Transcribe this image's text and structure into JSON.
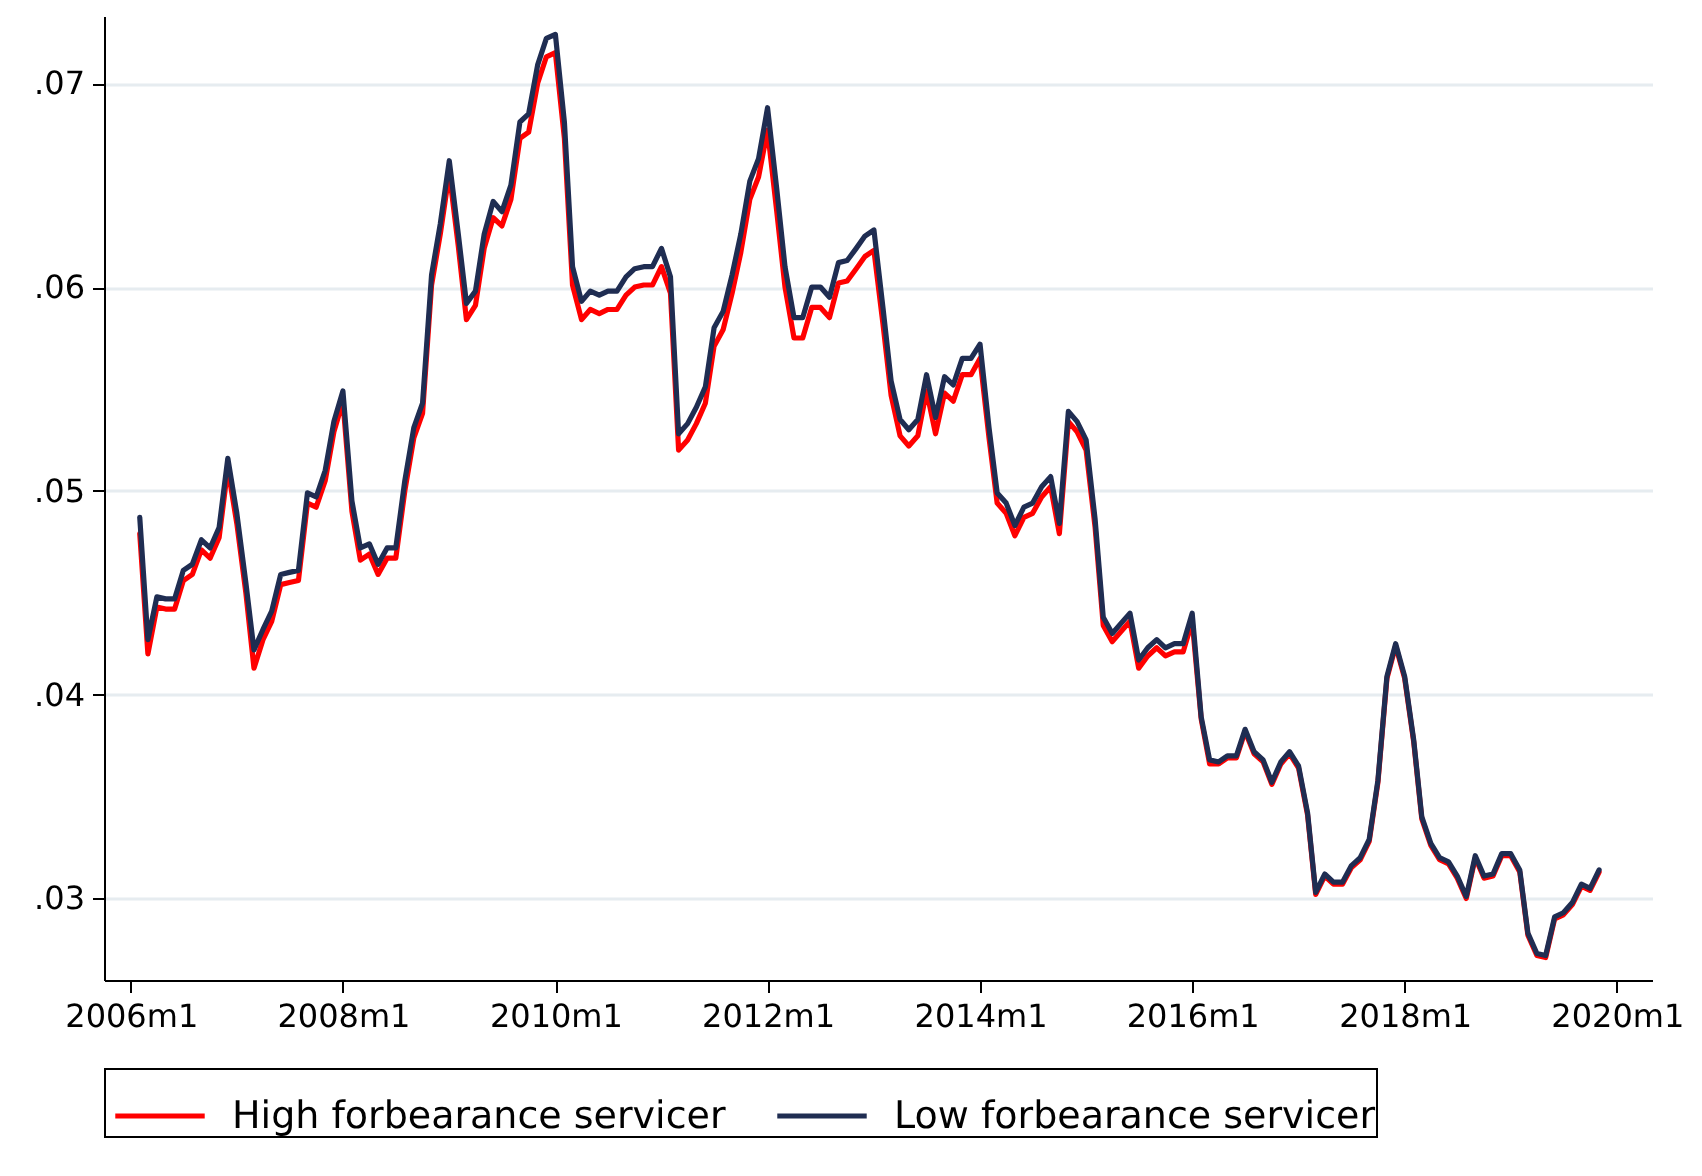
{
  "chart_data": {
    "type": "line",
    "x": [
      "2006-02",
      "2006-03",
      "2006-04",
      "2006-05",
      "2006-06",
      "2006-07",
      "2006-08",
      "2006-09",
      "2006-10",
      "2006-11",
      "2006-12",
      "2007-01",
      "2007-02",
      "2007-03",
      "2007-04",
      "2007-05",
      "2007-06",
      "2007-07",
      "2007-08",
      "2007-09",
      "2007-10",
      "2007-11",
      "2007-12",
      "2008-01",
      "2008-02",
      "2008-03",
      "2008-04",
      "2008-05",
      "2008-06",
      "2008-07",
      "2008-08",
      "2008-09",
      "2008-10",
      "2008-11",
      "2008-12",
      "2009-01",
      "2009-02",
      "2009-03",
      "2009-04",
      "2009-05",
      "2009-06",
      "2009-07",
      "2009-08",
      "2009-09",
      "2009-10",
      "2009-11",
      "2009-12",
      "2010-01",
      "2010-02",
      "2010-03",
      "2010-04",
      "2010-05",
      "2010-06",
      "2010-07",
      "2010-08",
      "2010-09",
      "2010-10",
      "2010-11",
      "2010-12",
      "2011-01",
      "2011-02",
      "2011-03",
      "2011-04",
      "2011-05",
      "2011-06",
      "2011-07",
      "2011-08",
      "2011-09",
      "2011-10",
      "2011-11",
      "2011-12",
      "2012-01",
      "2012-02",
      "2012-03",
      "2012-04",
      "2012-05",
      "2012-06",
      "2012-07",
      "2012-08",
      "2012-09",
      "2012-10",
      "2012-11",
      "2012-12",
      "2013-01",
      "2013-02",
      "2013-03",
      "2013-04",
      "2013-05",
      "2013-06",
      "2013-07",
      "2013-08",
      "2013-09",
      "2013-10",
      "2013-11",
      "2013-12",
      "2014-01",
      "2014-02",
      "2014-03",
      "2014-04",
      "2014-05",
      "2014-06",
      "2014-07",
      "2014-08",
      "2014-09",
      "2014-10",
      "2014-11",
      "2014-12",
      "2015-01",
      "2015-02",
      "2015-03",
      "2015-04",
      "2015-05",
      "2015-06",
      "2015-07",
      "2015-08",
      "2015-09",
      "2015-10",
      "2015-11",
      "2015-12",
      "2016-01",
      "2016-02",
      "2016-03",
      "2016-04",
      "2016-05",
      "2016-06",
      "2016-07",
      "2016-08",
      "2016-09",
      "2016-10",
      "2016-11",
      "2016-12",
      "2017-01",
      "2017-02",
      "2017-03",
      "2017-04",
      "2017-05",
      "2017-06",
      "2017-07",
      "2017-08",
      "2017-09",
      "2017-10",
      "2017-11",
      "2017-12",
      "2018-01",
      "2018-02",
      "2018-03",
      "2018-04",
      "2018-05",
      "2018-06",
      "2018-07",
      "2018-08",
      "2018-09",
      "2018-10",
      "2018-11",
      "2018-12",
      "2019-01",
      "2019-02",
      "2019-03",
      "2019-04",
      "2019-05",
      "2019-06",
      "2019-07",
      "2019-08",
      "2019-09",
      "2019-10",
      "2019-11"
    ],
    "series": [
      {
        "name": "High forbearance servicer",
        "color": "#ff0000",
        "values": [
          0.0479,
          0.042,
          0.0443,
          0.0442,
          0.0442,
          0.0456,
          0.0459,
          0.0471,
          0.0467,
          0.0477,
          0.0511,
          0.0484,
          0.045,
          0.0413,
          0.0427,
          0.0436,
          0.0454,
          0.0455,
          0.0456,
          0.0494,
          0.0492,
          0.0505,
          0.0529,
          0.0544,
          0.049,
          0.0466,
          0.0469,
          0.0459,
          0.0467,
          0.0467,
          0.05,
          0.0526,
          0.0538,
          0.0601,
          0.0626,
          0.0656,
          0.062,
          0.0584,
          0.0591,
          0.0619,
          0.0634,
          0.063,
          0.0643,
          0.0673,
          0.0676,
          0.07,
          0.0713,
          0.0715,
          0.0673,
          0.0601,
          0.0584,
          0.0589,
          0.0587,
          0.0589,
          0.0589,
          0.0596,
          0.06,
          0.0601,
          0.0601,
          0.061,
          0.0597,
          0.052,
          0.0525,
          0.0533,
          0.0543,
          0.0571,
          0.0579,
          0.0597,
          0.0617,
          0.0643,
          0.0654,
          0.0677,
          0.0638,
          0.06,
          0.0575,
          0.0575,
          0.059,
          0.059,
          0.0585,
          0.0602,
          0.0603,
          0.0609,
          0.0615,
          0.0618,
          0.0582,
          0.0547,
          0.0527,
          0.0522,
          0.0527,
          0.0549,
          0.0528,
          0.0548,
          0.0544,
          0.0557,
          0.0557,
          0.0565,
          0.0526,
          0.0494,
          0.0489,
          0.0478,
          0.0487,
          0.0489,
          0.0497,
          0.0502,
          0.0479,
          0.0534,
          0.0529,
          0.052,
          0.0482,
          0.0434,
          0.0426,
          0.0431,
          0.0436,
          0.0413,
          0.0419,
          0.0423,
          0.0419,
          0.0421,
          0.0421,
          0.0436,
          0.0388,
          0.0366,
          0.0366,
          0.0369,
          0.0369,
          0.0382,
          0.0371,
          0.0367,
          0.0356,
          0.0366,
          0.0371,
          0.0364,
          0.0341,
          0.0302,
          0.0311,
          0.0307,
          0.0307,
          0.0315,
          0.0319,
          0.0328,
          0.0357,
          0.0408,
          0.0424,
          0.0408,
          0.0377,
          0.0339,
          0.0326,
          0.0319,
          0.0317,
          0.031,
          0.03,
          0.032,
          0.031,
          0.0311,
          0.0321,
          0.0321,
          0.0313,
          0.0282,
          0.0272,
          0.0271,
          0.029,
          0.0292,
          0.0297,
          0.0306,
          0.0304,
          0.0313
        ]
      },
      {
        "name": "Low forbearance servicer",
        "color": "#1f2d52",
        "values": [
          0.0487,
          0.0427,
          0.0448,
          0.0447,
          0.0447,
          0.0461,
          0.0464,
          0.0476,
          0.0472,
          0.0482,
          0.0516,
          0.0489,
          0.0455,
          0.0422,
          0.0432,
          0.0441,
          0.0459,
          0.046,
          0.0461,
          0.0499,
          0.0497,
          0.051,
          0.0534,
          0.0549,
          0.0495,
          0.0472,
          0.0474,
          0.0464,
          0.0472,
          0.0472,
          0.0505,
          0.0531,
          0.0543,
          0.0606,
          0.0631,
          0.0662,
          0.0626,
          0.0592,
          0.0598,
          0.0626,
          0.0642,
          0.0637,
          0.065,
          0.0681,
          0.0685,
          0.0709,
          0.0722,
          0.0724,
          0.0681,
          0.061,
          0.0593,
          0.0598,
          0.0596,
          0.0598,
          0.0598,
          0.0605,
          0.0609,
          0.061,
          0.061,
          0.0619,
          0.0605,
          0.0528,
          0.0533,
          0.0541,
          0.0551,
          0.058,
          0.0588,
          0.0606,
          0.0626,
          0.0652,
          0.0663,
          0.0688,
          0.0649,
          0.061,
          0.0585,
          0.0585,
          0.06,
          0.06,
          0.0595,
          0.0612,
          0.0613,
          0.0619,
          0.0625,
          0.0628,
          0.059,
          0.0554,
          0.0535,
          0.053,
          0.0535,
          0.0557,
          0.0536,
          0.0556,
          0.0552,
          0.0565,
          0.0565,
          0.0572,
          0.0531,
          0.0499,
          0.0494,
          0.0483,
          0.0492,
          0.0494,
          0.0502,
          0.0507,
          0.0484,
          0.0539,
          0.0534,
          0.0525,
          0.0486,
          0.0438,
          0.043,
          0.0435,
          0.044,
          0.0417,
          0.0423,
          0.0427,
          0.0423,
          0.0425,
          0.0425,
          0.044,
          0.0389,
          0.0368,
          0.0367,
          0.037,
          0.037,
          0.0383,
          0.0372,
          0.0368,
          0.0357,
          0.0367,
          0.0372,
          0.0365,
          0.0342,
          0.0303,
          0.0312,
          0.0308,
          0.0308,
          0.0316,
          0.032,
          0.0329,
          0.0358,
          0.0409,
          0.0425,
          0.0409,
          0.0378,
          0.034,
          0.0327,
          0.032,
          0.0318,
          0.0311,
          0.0301,
          0.0321,
          0.0311,
          0.0312,
          0.0322,
          0.0322,
          0.0314,
          0.0283,
          0.0273,
          0.0272,
          0.0291,
          0.0293,
          0.0298,
          0.0307,
          0.0305,
          0.0314
        ]
      }
    ],
    "xlim": [
      "2005-10",
      "2020-05"
    ],
    "xticks": [
      {
        "value": "2006-01",
        "label": "2006m1"
      },
      {
        "value": "2008-01",
        "label": "2008m1"
      },
      {
        "value": "2010-01",
        "label": "2010m1"
      },
      {
        "value": "2012-01",
        "label": "2012m1"
      },
      {
        "value": "2014-01",
        "label": "2014m1"
      },
      {
        "value": "2016-01",
        "label": "2016m1"
      },
      {
        "value": "2018-01",
        "label": "2018m1"
      },
      {
        "value": "2020-01",
        "label": "2020m1"
      }
    ],
    "ylim": [
      0.026,
      0.0733
    ],
    "yticks": [
      {
        "value": 0.03,
        "label": ".03"
      },
      {
        "value": 0.04,
        "label": ".04"
      },
      {
        "value": 0.05,
        "label": ".05"
      },
      {
        "value": 0.06,
        "label": ".06"
      },
      {
        "value": 0.07,
        "label": ".07"
      }
    ],
    "grid": "y",
    "legend": "bottom",
    "marker": "none",
    "line_style": "solid"
  }
}
